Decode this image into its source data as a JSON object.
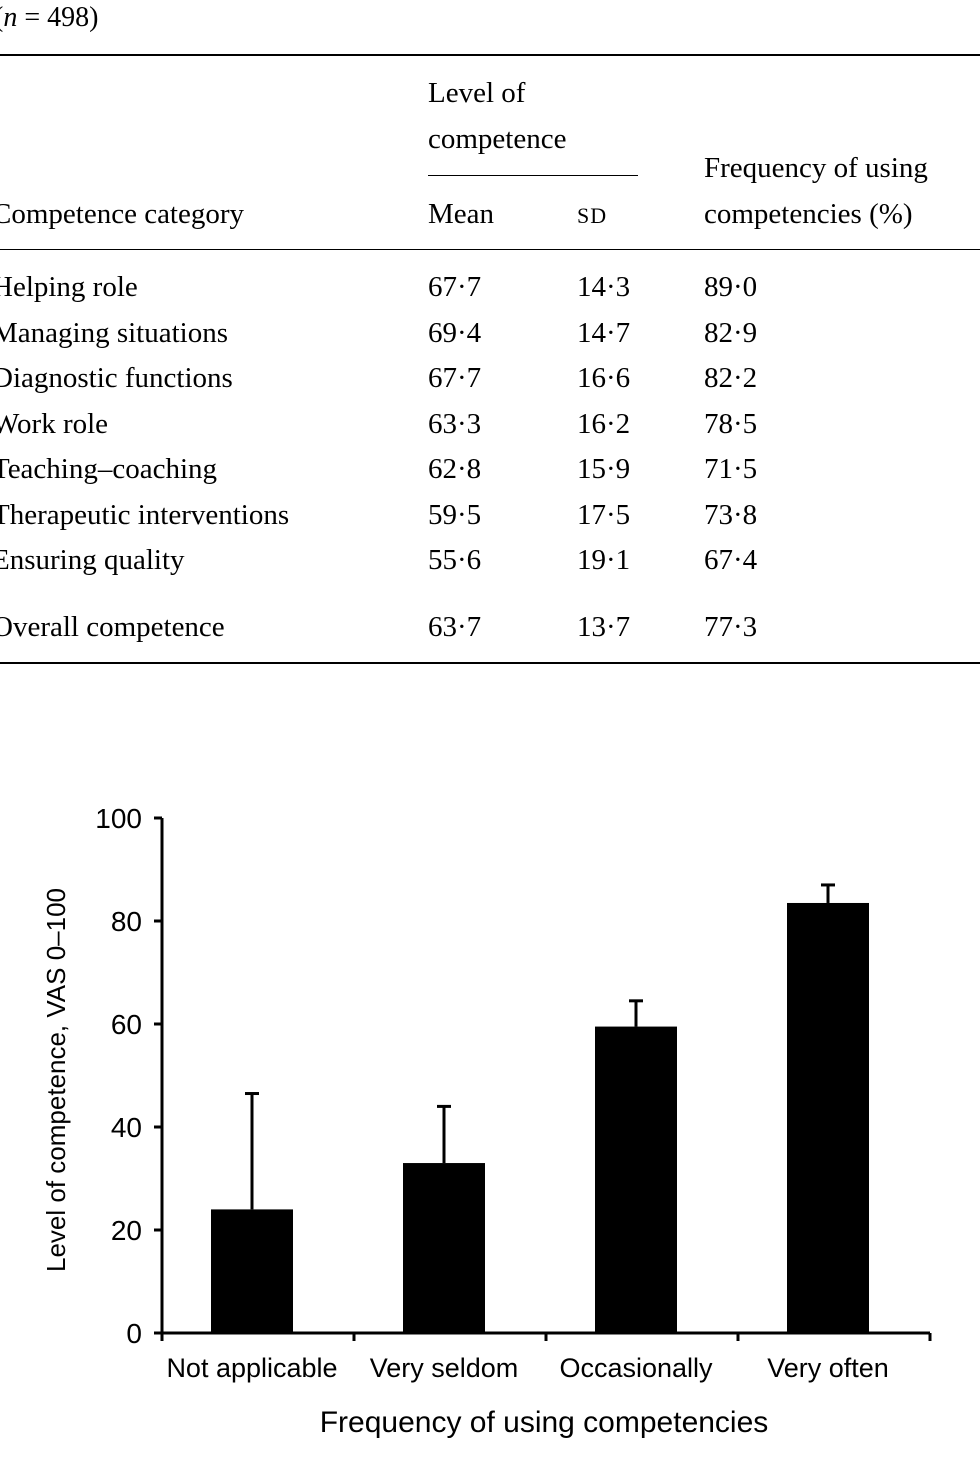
{
  "caption": {
    "n_symbol": "n",
    "n_rest": " = 498)",
    "open_paren": "("
  },
  "table": {
    "header": {
      "category": "Competence category",
      "level_group": "Level of competence",
      "level_line1": "Level of",
      "level_line2": "competence",
      "mean": "Mean",
      "sd": "SD",
      "freq_line1": "Frequency of using",
      "freq_line2": "competencies (%)"
    },
    "rows": [
      {
        "category": "Helping role",
        "mean": "67·7",
        "sd": "14·3",
        "freq": "89·0"
      },
      {
        "category": "Managing situations",
        "mean": "69·4",
        "sd": "14·7",
        "freq": "82·9"
      },
      {
        "category": "Diagnostic functions",
        "mean": "67·7",
        "sd": "16·6",
        "freq": "82·2"
      },
      {
        "category": "Work role",
        "mean": "63·3",
        "sd": "16·2",
        "freq": "78·5"
      },
      {
        "category": "Teaching–coaching",
        "mean": "62·8",
        "sd": "15·9",
        "freq": "71·5"
      },
      {
        "category": "Therapeutic interventions",
        "mean": "59·5",
        "sd": "17·5",
        "freq": "73·8"
      },
      {
        "category": "Ensuring quality",
        "mean": "55·6",
        "sd": "19·1",
        "freq": "67·4"
      }
    ],
    "total": {
      "category": "Overall competence",
      "mean": "63·7",
      "sd": "13·7",
      "freq": "77·3"
    }
  },
  "chart_data": {
    "type": "bar",
    "categories": [
      "Not applicable",
      "Very seldom",
      "Occasionally",
      "Very often"
    ],
    "values": [
      24,
      33,
      59.5,
      83.5
    ],
    "error_upper": [
      46.5,
      44,
      64.5,
      87
    ],
    "xlabel": "Frequency of using competencies",
    "ylabel": "Level of competence, VAS 0–100",
    "ylim": [
      0,
      100
    ],
    "yticks": [
      0,
      20,
      40,
      60,
      80,
      100
    ],
    "bar_color": "#000000",
    "grid": false,
    "legend": "none"
  }
}
